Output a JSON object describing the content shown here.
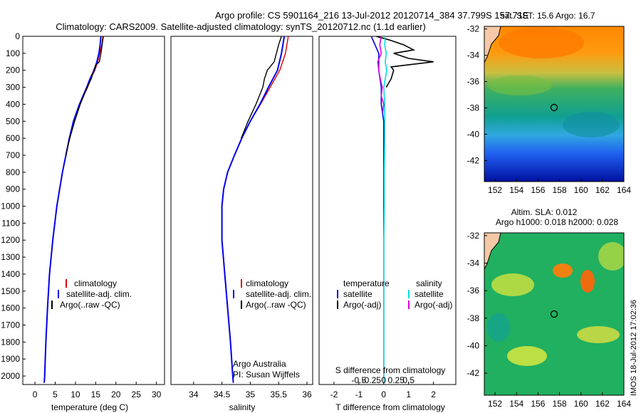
{
  "header": {
    "line1": "Argo profile: CS 5901164_216 13-Jul-2012 20120714_384 37.799S 157.71E",
    "line2": "Climatology: CARS2009. Satellite-adjusted climatology: synTS_20120712.nc (1.1d earlier)"
  },
  "colors": {
    "clim": "#dd0000",
    "sat": "#0000ee",
    "argo": "#000000",
    "cyan": "#00dddd",
    "magenta": "#dd00dd"
  },
  "depth_axis": {
    "ticks": [
      "0",
      "100",
      "200",
      "300",
      "400",
      "500",
      "600",
      "700",
      "800",
      "900",
      "1000",
      "1100",
      "1200",
      "1300",
      "1400",
      "1500",
      "1600",
      "1700",
      "1800",
      "1900",
      "2000"
    ]
  },
  "chart_data": [
    {
      "type": "line",
      "id": "temperature",
      "xlabel": "temperature (deg C)",
      "xlim": [
        -3,
        32
      ],
      "ylim": [
        0,
        2050
      ],
      "x_ticks": [
        "0",
        "5",
        "10",
        "15",
        "20",
        "25",
        "30"
      ],
      "legend": [
        "climatology",
        "satellite-adj. clim.",
        "Argo(..raw -QC)"
      ],
      "series": [
        {
          "name": "climatology",
          "depth": [
            0,
            50,
            100,
            150,
            200,
            250,
            300,
            400,
            500,
            600,
            800,
            1000,
            1200,
            1400,
            1600,
            1800,
            2000,
            2040
          ],
          "values": [
            16.8,
            16.5,
            16.0,
            15.5,
            14.8,
            13.8,
            13.0,
            11.0,
            9.5,
            8.5,
            6.8,
            5.4,
            4.4,
            3.6,
            3.1,
            2.7,
            2.4,
            2.3
          ]
        },
        {
          "name": "satellite-adj. clim.",
          "depth": [
            0,
            50,
            100,
            150,
            200,
            250,
            300,
            400,
            500,
            600,
            800,
            1000,
            1200,
            1400,
            1600,
            1800,
            2000,
            2040
          ],
          "values": [
            16.3,
            16.1,
            15.8,
            15.3,
            14.6,
            13.6,
            12.8,
            11.0,
            9.5,
            8.5,
            6.8,
            5.4,
            4.4,
            3.6,
            3.1,
            2.7,
            2.4,
            2.3
          ]
        },
        {
          "name": "Argo(..raw -QC)",
          "depth": [
            0,
            50,
            100,
            150,
            170,
            200,
            250,
            300,
            400,
            500,
            600,
            700
          ],
          "values": [
            16.9,
            16.6,
            16.3,
            15.9,
            15.0,
            14.5,
            13.9,
            12.9,
            11.2,
            9.8,
            8.6,
            7.6
          ]
        }
      ]
    },
    {
      "type": "line",
      "id": "salinity",
      "xlabel": "salinity",
      "xlim": [
        33.6,
        36.1
      ],
      "ylim": [
        0,
        2050
      ],
      "x_ticks": [
        "34",
        "34.5",
        "35",
        "35.5",
        "36"
      ],
      "legend": [
        "climatology",
        "satellite-adj. clim.",
        "Argo(..raw -QC)"
      ],
      "note": [
        "Argo Australia",
        "PI: Susan Wijffels"
      ],
      "series": [
        {
          "name": "climatology",
          "depth": [
            0,
            100,
            200,
            300,
            400,
            500,
            600,
            700,
            800,
            900,
            1000,
            1200,
            1400,
            1600,
            1800,
            2000,
            2040
          ],
          "values": [
            35.67,
            35.62,
            35.52,
            35.35,
            35.18,
            35.0,
            34.85,
            34.72,
            34.6,
            34.53,
            34.5,
            34.5,
            34.55,
            34.6,
            34.65,
            34.69,
            34.7
          ]
        },
        {
          "name": "satellite-adj. clim.",
          "depth": [
            0,
            100,
            200,
            300,
            400,
            500,
            600,
            700,
            800,
            900,
            1000,
            1200,
            1400,
            1600,
            1800,
            2000,
            2040
          ],
          "values": [
            35.6,
            35.55,
            35.48,
            35.32,
            35.17,
            35.0,
            34.85,
            34.72,
            34.6,
            34.53,
            34.5,
            34.5,
            34.55,
            34.6,
            34.65,
            34.69,
            34.7
          ]
        },
        {
          "name": "Argo(..raw -QC)",
          "depth": [
            0,
            50,
            100,
            150,
            200,
            250,
            300,
            400,
            500,
            600
          ],
          "values": [
            35.55,
            35.5,
            35.46,
            35.42,
            35.3,
            35.25,
            35.22,
            35.1,
            34.96,
            34.84
          ]
        }
      ]
    },
    {
      "type": "line",
      "id": "difference",
      "xlabel": "T difference from climatology",
      "xlabel_top": "S difference from climatology",
      "xlim": [
        -2.6,
        2.9
      ],
      "ylim": [
        0,
        2050
      ],
      "x_ticks": [
        "-2",
        "-1",
        "0",
        "1",
        "2"
      ],
      "s_ticks": [
        "-0.5",
        "-0.25",
        "0",
        "0.25",
        "0.5"
      ],
      "legend": {
        "temperature": "temperature",
        "salinity": "salinity",
        "items": [
          "satellite",
          "Argo(-adj)",
          "satellite",
          "Argo(-adj)"
        ]
      },
      "series": [
        {
          "name": "T satellite",
          "depth": [
            0,
            100,
            200,
            300,
            400,
            500,
            700,
            900,
            1100,
            1300,
            1600,
            2040
          ],
          "values": [
            -0.5,
            -0.2,
            -0.2,
            -0.1,
            -0.1,
            0.0,
            0.0,
            0.0,
            0.0,
            0.0,
            0.0,
            0.0
          ]
        },
        {
          "name": "T Argo(-adj)",
          "depth": [
            0,
            20,
            50,
            80,
            100,
            130,
            150,
            180,
            200,
            250,
            300
          ],
          "values": [
            -0.3,
            0.2,
            0.8,
            1.2,
            0.4,
            1.0,
            2.0,
            0.3,
            0.4,
            0.3,
            0.1
          ]
        },
        {
          "name": "S satellite",
          "depth": [
            0,
            50,
            100,
            150,
            200,
            300,
            400,
            500,
            600,
            800,
            1000,
            1200,
            1500,
            2040
          ],
          "values": [
            0.03,
            0.02,
            0.05,
            0.03,
            0.06,
            0.0,
            0.02,
            0.02,
            0.02,
            0.01,
            0.01,
            0.0,
            0.0,
            0.0
          ]
        },
        {
          "name": "S Argo(-adj)",
          "depth": [
            0,
            50,
            100,
            150,
            200,
            250,
            300,
            350,
            400,
            450
          ],
          "values": [
            -0.05,
            -0.08,
            -0.05,
            -0.12,
            -0.1,
            -0.07,
            -0.03,
            -0.05,
            0.0,
            -0.02
          ]
        }
      ]
    }
  ],
  "maps": {
    "sst": {
      "title": "sat. SST: 15.6 Argo: 16.7",
      "y_ticks": [
        "-32",
        "-34",
        "-36",
        "-38",
        "-40",
        "-42"
      ],
      "x_ticks": [
        "152",
        "154",
        "156",
        "158",
        "160",
        "162",
        "164"
      ],
      "marker_lon": 157.71,
      "marker_lat": -37.8
    },
    "sla": {
      "title1": "Altim. SLA: 0.012",
      "title2": "Argo h1000: 0.018 h2000: 0.028",
      "y_ticks": [
        "-32",
        "-34",
        "-36",
        "-38",
        "-40",
        "-42"
      ],
      "x_ticks": [
        "152",
        "154",
        "156",
        "158",
        "160",
        "162",
        "164"
      ],
      "marker_lon": 157.71,
      "marker_lat": -37.8
    }
  },
  "footer": {
    "stamp": "IMOS 18-Jul-2012 17:02:36"
  }
}
